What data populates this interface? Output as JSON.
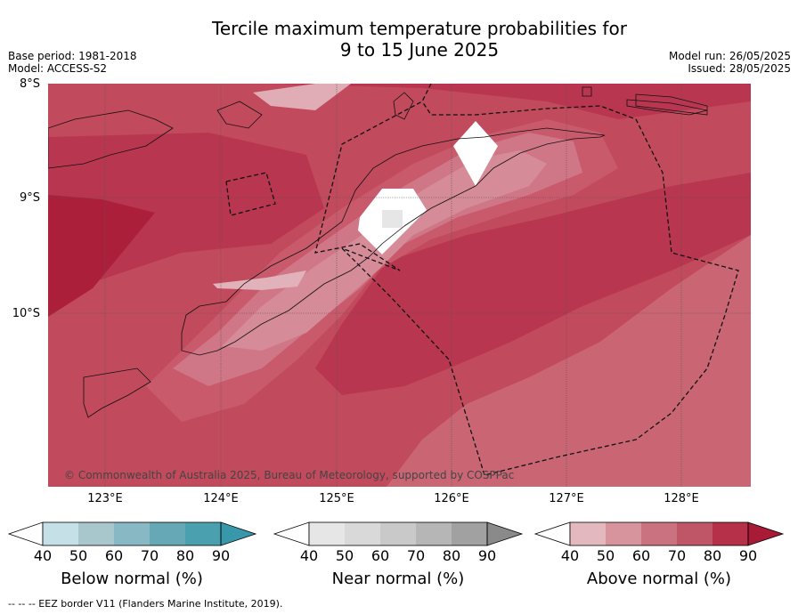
{
  "title": {
    "line1": "Tercile maximum temperature probabilities for",
    "line2": "9 to 15 June 2025"
  },
  "meta_left": {
    "base_period": "Base period: 1981-2018",
    "model": "Model: ACCESS-S2"
  },
  "meta_right": {
    "model_run": "Model run: 26/05/2025",
    "issued": "Issued: 28/05/2025"
  },
  "map": {
    "lat_labels": [
      "8°S",
      "9°S",
      "10°S"
    ],
    "lon_labels": [
      "123°E",
      "124°E",
      "125°E",
      "126°E",
      "127°E",
      "128°E"
    ],
    "credit": "© Commonwealth of Australia 2025, Bureau of Meteorology, supported by COSPPac",
    "background_color": "#c24a5d"
  },
  "colorbars": [
    {
      "title": "Below normal (%)",
      "ticks": [
        "40",
        "50",
        "60",
        "70",
        "80",
        "90"
      ],
      "colors": [
        "#ffffff",
        "#c6e0e7",
        "#a7c7cd",
        "#88b8c4",
        "#66a8b6",
        "#4ba0b0",
        "#3898aa"
      ]
    },
    {
      "title": "Near normal (%)",
      "ticks": [
        "40",
        "50",
        "60",
        "70",
        "80",
        "90"
      ],
      "colors": [
        "#ffffff",
        "#e6e6e6",
        "#d9d9d9",
        "#c9c9c9",
        "#b6b6b6",
        "#a1a1a1",
        "#8a8a8a"
      ]
    },
    {
      "title": "Above normal (%)",
      "ticks": [
        "40",
        "50",
        "60",
        "70",
        "80",
        "90"
      ],
      "colors": [
        "#ffffff",
        "#e4b8bf",
        "#d8949d",
        "#ca727f",
        "#bf5667",
        "#b53048",
        "#a81a35"
      ]
    }
  ],
  "footer": "-- -- -- EEZ border V11 (Flanders Marine Institute, 2019)."
}
